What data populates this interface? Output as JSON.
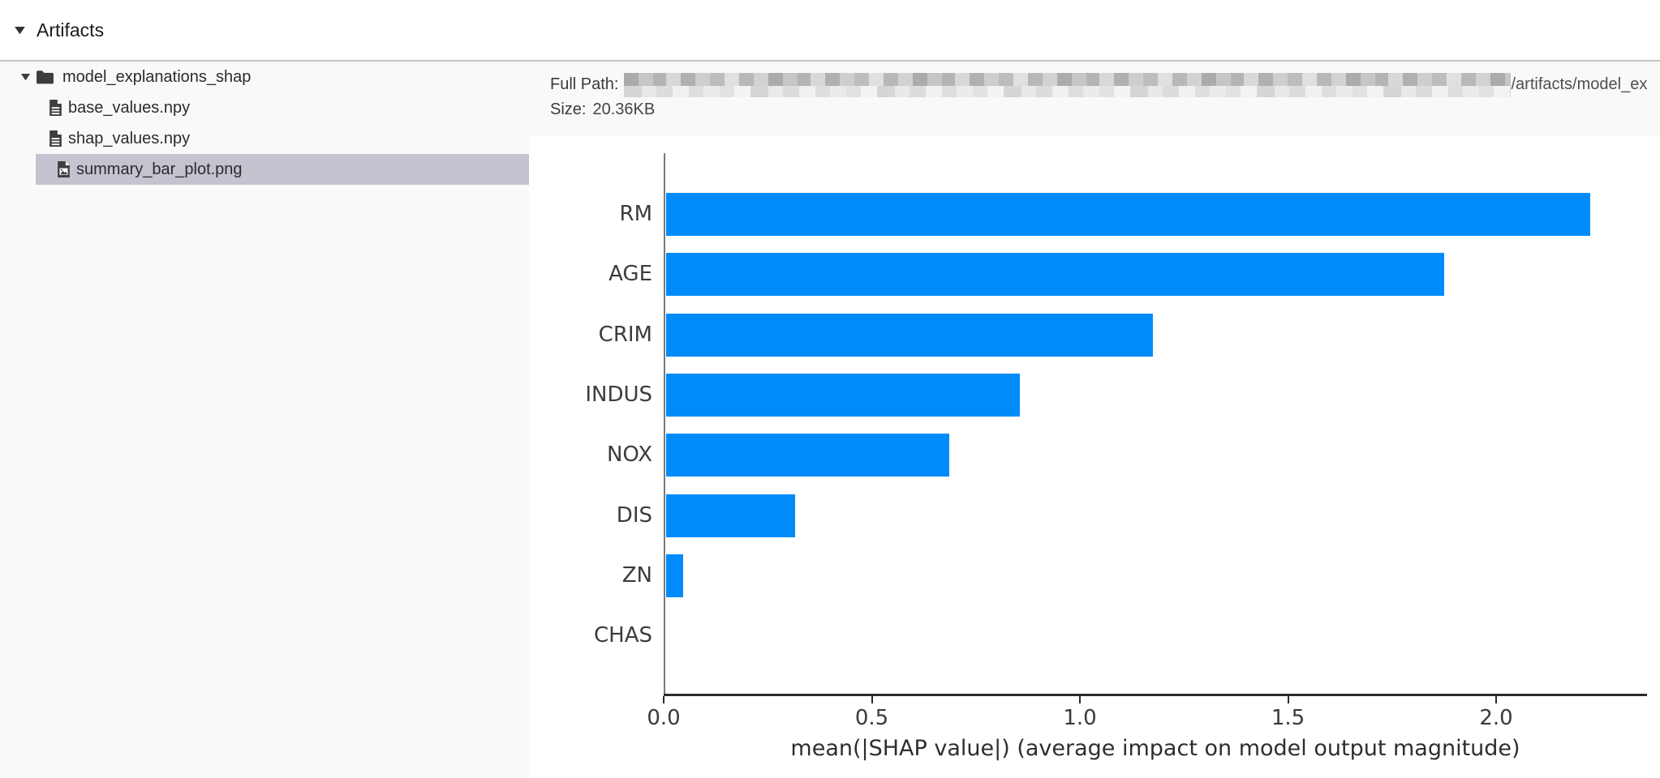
{
  "header": {
    "title": "Artifacts"
  },
  "file_tree": {
    "folder": "model_explanations_shap",
    "files": [
      "base_values.npy",
      "shap_values.npy",
      "summary_bar_plot.png"
    ],
    "selected": "summary_bar_plot.png"
  },
  "file_info": {
    "full_path_label": "Full Path:",
    "path_visible_tail": "/artifacts/model_ex",
    "size_label": "Size:",
    "size_value": "20.36KB"
  },
  "chart_data": {
    "type": "bar",
    "orientation": "horizontal",
    "title": "",
    "categories": [
      "RM",
      "AGE",
      "CRIM",
      "INDUS",
      "NOX",
      "DIS",
      "ZN",
      "CHAS"
    ],
    "values": [
      2.22,
      1.87,
      1.17,
      0.85,
      0.68,
      0.31,
      0.04,
      0.0
    ],
    "xlabel": "mean(|SHAP value|) (average impact on model output magnitude)",
    "ylabel": "",
    "xticks": [
      0.0,
      0.5,
      1.0,
      1.5,
      2.0
    ],
    "xlim": [
      0,
      2.36
    ],
    "grid": false,
    "legend": false,
    "bar_color": "#008bfb"
  },
  "colors": {
    "bar_blue": "#008bfb",
    "selected_row_bg": "#c6c2cf",
    "panel_bg": "#f9f9f9",
    "border": "#c3c3c3"
  }
}
